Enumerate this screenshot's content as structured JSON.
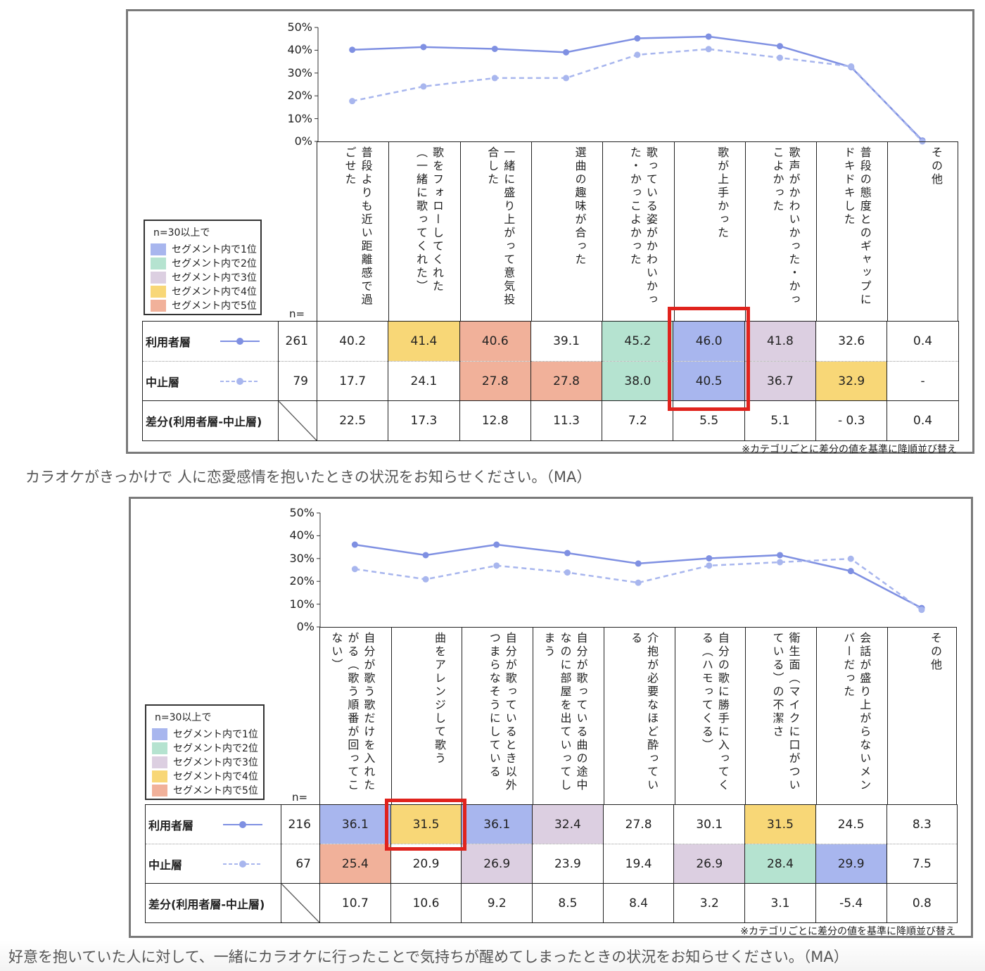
{
  "colors": {
    "rank1": "#a8b6ee",
    "rank2": "#b5e3d0",
    "rank3": "#dccfe1",
    "rank4": "#f8d777",
    "rank5": "#f1b19a",
    "series_user": "#7f90e2",
    "series_stop": "#a8b6ee",
    "highlight": "#e0231d"
  },
  "caption1": "カラオケがきっかけで 人に恋愛感情を抱いたときの状況をお知らせください。（MA）",
  "caption2": "好意を抱いていた人に対して、一緒にカラオケに行ったことで気持ちが醒めてしまったときの状況をお知らせください。（MA）",
  "chart_data": [
    {
      "type": "line",
      "y_ticks": [
        "50%",
        "40%",
        "30%",
        "20%",
        "10%",
        "0%"
      ],
      "ylim": [
        0,
        50
      ],
      "categories": [
        "普段よりも近い距離感で過ごせた",
        "歌をフォローしてくれた（一緒に歌ってくれた）",
        "一緒に盛り上がって意気投合した",
        "選曲の趣味が合った",
        "歌っている姿がかわいかった・かっこよかった",
        "歌が上手かった",
        "歌声がかわいかった・かっこよかった",
        "普段の態度とのギャップにドキドキした",
        "その他"
      ],
      "series": [
        {
          "name": "利用者層",
          "n": "261",
          "values": [
            40.2,
            41.4,
            40.6,
            39.1,
            45.2,
            46.0,
            41.8,
            32.6,
            0.4
          ],
          "display": [
            "40.2",
            "41.4",
            "40.6",
            "39.1",
            "45.2",
            "46.0",
            "41.8",
            "32.6",
            "0.4"
          ],
          "rank": [
            0,
            4,
            5,
            0,
            2,
            1,
            3,
            0,
            0
          ],
          "style": "solid"
        },
        {
          "name": "中止層",
          "n": "79",
          "values": [
            17.7,
            24.1,
            27.8,
            27.8,
            38.0,
            40.5,
            36.7,
            32.9,
            0
          ],
          "display": [
            "17.7",
            "24.1",
            "27.8",
            "27.8",
            "38.0",
            "40.5",
            "36.7",
            "32.9",
            "-"
          ],
          "rank": [
            0,
            0,
            5,
            5,
            2,
            1,
            3,
            4,
            0
          ],
          "style": "dashed"
        }
      ],
      "diff_label": "差分(利用者層-中止層)",
      "diff": [
        "22.5",
        "17.3",
        "12.8",
        "11.3",
        "7.2",
        "5.5",
        "5.1",
        "‐ 0.3",
        "0.4"
      ],
      "n_label": "n=",
      "legend": {
        "title": "n=30以上で",
        "items": [
          "セグメント内で1位",
          "セグメント内で2位",
          "セグメント内で3位",
          "セグメント内で4位",
          "セグメント内で5位"
        ]
      },
      "note": "※カテゴリごとに差分の値を基準に降順並び替え",
      "highlight_col": 5
    },
    {
      "type": "line",
      "y_ticks": [
        "50%",
        "40%",
        "30%",
        "20%",
        "10%",
        "0%"
      ],
      "ylim": [
        0,
        50
      ],
      "categories": [
        "自分が歌う歌だけを入れたがる（歌う順番が回ってこない）",
        "曲をアレンジして歌う",
        "自分が歌っているとき以外つまらなそうにしている",
        "自分が歌っている曲の途中なのに部屋を出ていってしまう",
        "介抱が必要なほど酔っている",
        "自分の歌に勝手に入ってくる（ハモってくる）",
        "衛生面（マイクに口がついている）の不潔さ",
        "会話が盛り上がらないメンバーだった",
        "その他"
      ],
      "series": [
        {
          "name": "利用者層",
          "n": "216",
          "values": [
            36.1,
            31.5,
            36.1,
            32.4,
            27.8,
            30.1,
            31.5,
            24.5,
            8.3
          ],
          "display": [
            "36.1",
            "31.5",
            "36.1",
            "32.4",
            "27.8",
            "30.1",
            "31.5",
            "24.5",
            "8.3"
          ],
          "rank": [
            1,
            4,
            1,
            3,
            0,
            0,
            4,
            0,
            0
          ],
          "style": "solid"
        },
        {
          "name": "中止層",
          "n": "67",
          "values": [
            25.4,
            20.9,
            26.9,
            23.9,
            19.4,
            26.9,
            28.4,
            29.9,
            7.5
          ],
          "display": [
            "25.4",
            "20.9",
            "26.9",
            "23.9",
            "19.4",
            "26.9",
            "28.4",
            "29.9",
            "7.5"
          ],
          "rank": [
            5,
            0,
            3,
            0,
            0,
            3,
            2,
            1,
            0
          ],
          "style": "dashed"
        }
      ],
      "diff_label": "差分(利用者層-中止層)",
      "diff": [
        "10.7",
        "10.6",
        "9.2",
        "8.5",
        "8.4",
        "3.2",
        "3.1",
        "-5.4",
        "0.8"
      ],
      "n_label": "n=",
      "legend": {
        "title": "n=30以上で",
        "items": [
          "セグメント内で1位",
          "セグメント内で2位",
          "セグメント内で3位",
          "セグメント内で4位",
          "セグメント内で5位"
        ]
      },
      "note": "※カテゴリごとに差分の値を基準に降順並び替え",
      "highlight_col": 1
    }
  ]
}
